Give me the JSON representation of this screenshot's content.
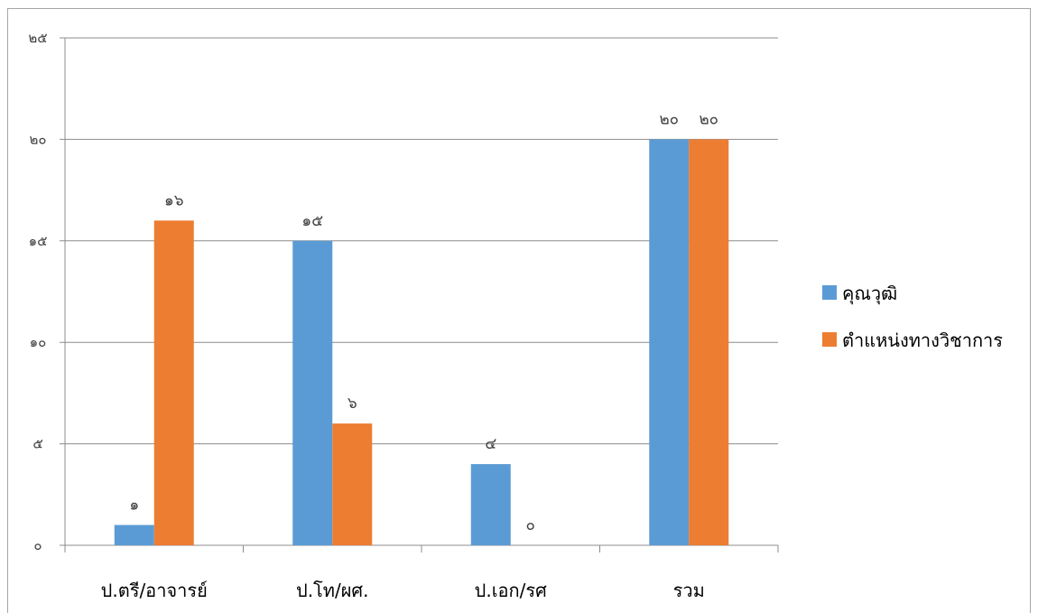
{
  "chart_data": {
    "type": "bar",
    "categories": [
      "ป.ตรี/อาจารย์",
      "ป.โท/ผศ.",
      "ป.เอก/รศ",
      "รวม"
    ],
    "series": [
      {
        "name": "คุณวุฒิ",
        "color": "#5b9bd5",
        "values": [
          1,
          15,
          4,
          20
        ],
        "labels": [
          "๑",
          "๑๕",
          "๔",
          "๒๐"
        ]
      },
      {
        "name": "ตำแหน่งทางวิชาการ",
        "color": "#ed7d31",
        "values": [
          16,
          6,
          0,
          20
        ],
        "labels": [
          "๑๖",
          "๖",
          "๐",
          "๒๐"
        ]
      }
    ],
    "ylim": [
      0,
      25
    ],
    "yticks": [
      0,
      5,
      10,
      15,
      20,
      25
    ],
    "ytick_labels": [
      "๐",
      "๕",
      "๑๐",
      "๑๕",
      "๒๐",
      "๒๕"
    ],
    "grid": true,
    "legend_position": "right",
    "title": "",
    "xlabel": "",
    "ylabel": ""
  }
}
